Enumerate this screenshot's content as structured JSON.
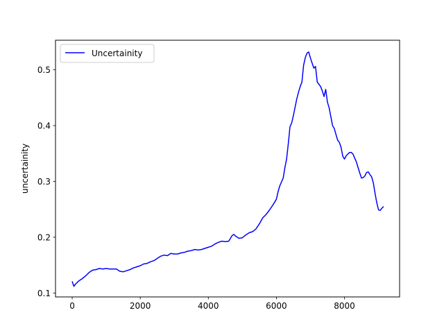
{
  "chart_data": {
    "type": "line",
    "title": "",
    "xlabel": "",
    "ylabel": "uncertainity",
    "xlim": [
      -490,
      9620
    ],
    "ylim": [
      0.093,
      0.553
    ],
    "xticks": [
      0,
      2000,
      4000,
      6000,
      8000
    ],
    "xtick_labels": [
      "0",
      "2000",
      "4000",
      "6000",
      "8000"
    ],
    "yticks": [
      0.1,
      0.2,
      0.3,
      0.4,
      0.5
    ],
    "ytick_labels": [
      "0.1",
      "0.2",
      "0.3",
      "0.4",
      "0.5"
    ],
    "grid": false,
    "legend": {
      "position": "upper-left"
    },
    "series": [
      {
        "name": "Uncertainity",
        "color": "#0000ff",
        "x": [
          0,
          50,
          100,
          200,
          300,
          400,
          500,
          600,
          700,
          800,
          900,
          1000,
          1100,
          1200,
          1300,
          1400,
          1500,
          1600,
          1700,
          1800,
          1900,
          2000,
          2100,
          2200,
          2300,
          2400,
          2500,
          2600,
          2700,
          2800,
          2900,
          3000,
          3100,
          3200,
          3300,
          3400,
          3500,
          3600,
          3700,
          3800,
          3900,
          4000,
          4100,
          4200,
          4300,
          4400,
          4500,
          4600,
          4700,
          4750,
          4800,
          4900,
          5000,
          5100,
          5200,
          5300,
          5400,
          5500,
          5600,
          5700,
          5800,
          5900,
          6000,
          6050,
          6100,
          6200,
          6250,
          6300,
          6350,
          6400,
          6450,
          6500,
          6600,
          6650,
          6700,
          6750,
          6800,
          6850,
          6900,
          6950,
          7000,
          7050,
          7100,
          7150,
          7200,
          7250,
          7300,
          7350,
          7400,
          7450,
          7500,
          7550,
          7600,
          7650,
          7700,
          7750,
          7800,
          7850,
          7900,
          7950,
          8000,
          8050,
          8100,
          8150,
          8200,
          8250,
          8300,
          8350,
          8400,
          8450,
          8500,
          8550,
          8600,
          8650,
          8700,
          8750,
          8800,
          8850,
          8900,
          8950,
          9000,
          9050,
          9100,
          9150
        ],
        "values": [
          0.121,
          0.112,
          0.116,
          0.122,
          0.126,
          0.131,
          0.137,
          0.141,
          0.142,
          0.144,
          0.143,
          0.144,
          0.143,
          0.143,
          0.143,
          0.139,
          0.138,
          0.14,
          0.142,
          0.145,
          0.147,
          0.149,
          0.152,
          0.153,
          0.156,
          0.158,
          0.162,
          0.166,
          0.168,
          0.167,
          0.171,
          0.17,
          0.17,
          0.172,
          0.173,
          0.175,
          0.176,
          0.178,
          0.177,
          0.178,
          0.18,
          0.182,
          0.184,
          0.188,
          0.191,
          0.193,
          0.192,
          0.193,
          0.203,
          0.205,
          0.202,
          0.198,
          0.199,
          0.204,
          0.208,
          0.21,
          0.215,
          0.224,
          0.235,
          0.241,
          0.249,
          0.258,
          0.268,
          0.282,
          0.292,
          0.306,
          0.325,
          0.34,
          0.368,
          0.398,
          0.405,
          0.418,
          0.448,
          0.46,
          0.47,
          0.478,
          0.508,
          0.522,
          0.53,
          0.532,
          0.521,
          0.512,
          0.503,
          0.506,
          0.478,
          0.474,
          0.47,
          0.462,
          0.452,
          0.465,
          0.442,
          0.432,
          0.416,
          0.4,
          0.395,
          0.384,
          0.374,
          0.37,
          0.361,
          0.345,
          0.34,
          0.346,
          0.349,
          0.352,
          0.352,
          0.349,
          0.342,
          0.335,
          0.325,
          0.315,
          0.306,
          0.307,
          0.31,
          0.316,
          0.317,
          0.312,
          0.308,
          0.297,
          0.278,
          0.262,
          0.249,
          0.248,
          0.252,
          0.255
        ]
      }
    ]
  }
}
